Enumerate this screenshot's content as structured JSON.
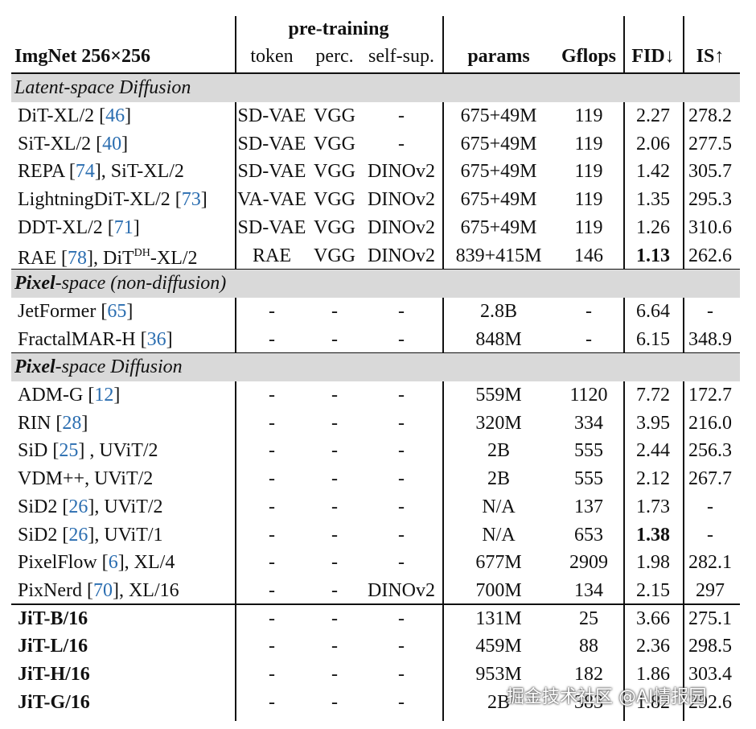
{
  "header": {
    "title": "ImgNet 256×256",
    "group": "pre-training",
    "columns": [
      "token",
      "perc.",
      "self-sup.",
      "params",
      "Gflops",
      "FID↓",
      "IS↑"
    ]
  },
  "sections": [
    {
      "title": [
        {
          "text": "Latent-space Diffusion",
          "style": "italic"
        }
      ],
      "rows": [
        {
          "name": [
            {
              "text": "DiT-XL/2 ["
            },
            {
              "text": "46",
              "style": "ref"
            },
            {
              "text": "]"
            }
          ],
          "cells": [
            "SD-VAE",
            "VGG",
            "-",
            "675+49M",
            "119",
            "2.27",
            "278.2"
          ]
        },
        {
          "name": [
            {
              "text": "SiT-XL/2 ["
            },
            {
              "text": "40",
              "style": "ref"
            },
            {
              "text": "]"
            }
          ],
          "cells": [
            "SD-VAE",
            "VGG",
            "-",
            "675+49M",
            "119",
            "2.06",
            "277.5"
          ]
        },
        {
          "name": [
            {
              "text": "REPA ["
            },
            {
              "text": "74",
              "style": "ref"
            },
            {
              "text": "], SiT-XL/2"
            }
          ],
          "cells": [
            "SD-VAE",
            "VGG",
            "DINOv2",
            "675+49M",
            "119",
            "1.42",
            "305.7"
          ]
        },
        {
          "name": [
            {
              "text": "LightningDiT-XL/2 ["
            },
            {
              "text": "73",
              "style": "ref"
            },
            {
              "text": "]"
            }
          ],
          "cells": [
            "VA-VAE",
            "VGG",
            "DINOv2",
            "675+49M",
            "119",
            "1.35",
            "295.3"
          ]
        },
        {
          "name": [
            {
              "text": "DDT-XL/2 ["
            },
            {
              "text": "71",
              "style": "ref"
            },
            {
              "text": "]"
            }
          ],
          "cells": [
            "SD-VAE",
            "VGG",
            "DINOv2",
            "675+49M",
            "119",
            "1.26",
            "310.6"
          ]
        },
        {
          "name": [
            {
              "text": "RAE ["
            },
            {
              "text": "78",
              "style": "ref"
            },
            {
              "text": "], DiT"
            },
            {
              "text": "DH",
              "style": "sup"
            },
            {
              "text": "-XL/2"
            }
          ],
          "cells": [
            "RAE",
            "VGG",
            "DINOv2",
            "839+415M",
            "146",
            "1.13",
            "262.6"
          ],
          "bold": [
            5
          ]
        }
      ]
    },
    {
      "title": [
        {
          "text": "Pixel",
          "style": "bolditalic"
        },
        {
          "text": "-space (non-diffusion)",
          "style": "italic"
        }
      ],
      "rows": [
        {
          "name": [
            {
              "text": "JetFormer ["
            },
            {
              "text": "65",
              "style": "ref"
            },
            {
              "text": "]"
            }
          ],
          "cells": [
            "-",
            "-",
            "-",
            "2.8B",
            "-",
            "6.64",
            "-"
          ]
        },
        {
          "name": [
            {
              "text": "FractalMAR-H ["
            },
            {
              "text": "36",
              "style": "ref"
            },
            {
              "text": "]"
            }
          ],
          "cells": [
            "-",
            "-",
            "-",
            "848M",
            "-",
            "6.15",
            "348.9"
          ]
        }
      ]
    },
    {
      "title": [
        {
          "text": "Pixel",
          "style": "bolditalic"
        },
        {
          "text": "-space Diffusion",
          "style": "italic"
        }
      ],
      "rows": [
        {
          "name": [
            {
              "text": "ADM-G ["
            },
            {
              "text": "12",
              "style": "ref"
            },
            {
              "text": "]"
            }
          ],
          "cells": [
            "-",
            "-",
            "-",
            "559M",
            "1120",
            "7.72",
            "172.7"
          ]
        },
        {
          "name": [
            {
              "text": "RIN ["
            },
            {
              "text": "28",
              "style": "ref"
            },
            {
              "text": "]"
            }
          ],
          "cells": [
            "-",
            "-",
            "-",
            "320M",
            "334",
            "3.95",
            "216.0"
          ]
        },
        {
          "name": [
            {
              "text": "SiD ["
            },
            {
              "text": "25",
              "style": "ref"
            },
            {
              "text": "] , UViT/2"
            }
          ],
          "cells": [
            "-",
            "-",
            "-",
            "2B",
            "555",
            "2.44",
            "256.3"
          ]
        },
        {
          "name": [
            {
              "text": "VDM++, UViT/2"
            }
          ],
          "cells": [
            "-",
            "-",
            "-",
            "2B",
            "555",
            "2.12",
            "267.7"
          ]
        },
        {
          "name": [
            {
              "text": "SiD2 ["
            },
            {
              "text": "26",
              "style": "ref"
            },
            {
              "text": "], UViT/2"
            }
          ],
          "cells": [
            "-",
            "-",
            "-",
            "N/A",
            "137",
            "1.73",
            "-"
          ]
        },
        {
          "name": [
            {
              "text": "SiD2 ["
            },
            {
              "text": "26",
              "style": "ref"
            },
            {
              "text": "], UViT/1"
            }
          ],
          "cells": [
            "-",
            "-",
            "-",
            "N/A",
            "653",
            "1.38",
            "-"
          ],
          "bold": [
            5
          ]
        },
        {
          "name": [
            {
              "text": "PixelFlow ["
            },
            {
              "text": "6",
              "style": "ref"
            },
            {
              "text": "], XL/4"
            }
          ],
          "cells": [
            "-",
            "-",
            "-",
            "677M",
            "2909",
            "1.98",
            "282.1"
          ]
        },
        {
          "name": [
            {
              "text": "PixNerd ["
            },
            {
              "text": "70",
              "style": "ref"
            },
            {
              "text": "], XL/16"
            }
          ],
          "cells": [
            "-",
            "-",
            "DINOv2",
            "700M",
            "134",
            "2.15",
            "297"
          ]
        }
      ]
    },
    {
      "rows": [
        {
          "name": [
            {
              "text": "JiT-B/16",
              "style": "bold"
            }
          ],
          "cells": [
            "-",
            "-",
            "-",
            "131M",
            "25",
            "3.66",
            "275.1"
          ]
        },
        {
          "name": [
            {
              "text": "JiT-L/16",
              "style": "bold"
            }
          ],
          "cells": [
            "-",
            "-",
            "-",
            "459M",
            "88",
            "2.36",
            "298.5"
          ]
        },
        {
          "name": [
            {
              "text": "JiT-H/16",
              "style": "bold"
            }
          ],
          "cells": [
            "-",
            "-",
            "-",
            "953M",
            "182",
            "1.86",
            "303.4"
          ]
        },
        {
          "name": [
            {
              "text": "JiT-G/16",
              "style": "bold"
            }
          ],
          "cells": [
            "-",
            "-",
            "-",
            "2B",
            "383",
            "1.82",
            "292.6"
          ]
        }
      ]
    }
  ],
  "watermark": "掘金技术社区 @AI情报园"
}
